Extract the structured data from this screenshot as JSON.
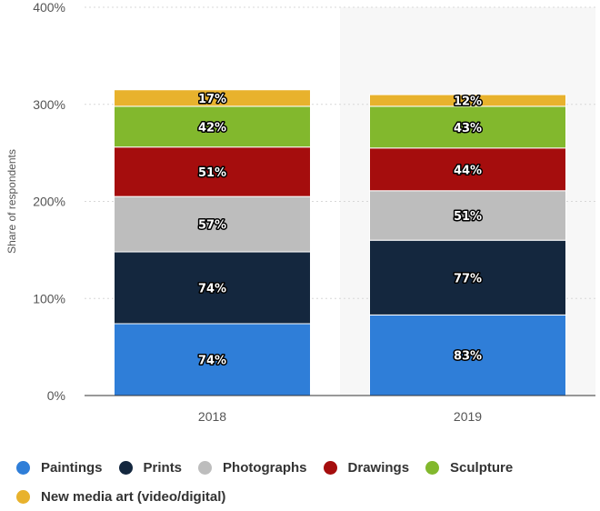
{
  "chart_data": {
    "type": "bar",
    "stacked": true,
    "categories": [
      "2018",
      "2019"
    ],
    "series": [
      {
        "name": "Paintings",
        "values": [
          74,
          83
        ],
        "color": "#2f7ed8",
        "labels": [
          "74%",
          "83%"
        ]
      },
      {
        "name": "Prints",
        "values": [
          74,
          77
        ],
        "color": "#14273e",
        "labels": [
          "74%",
          "77%"
        ]
      },
      {
        "name": "Photographs",
        "values": [
          57,
          51
        ],
        "color": "#bdbdbd",
        "labels": [
          "57%",
          "51%"
        ]
      },
      {
        "name": "Drawings",
        "values": [
          51,
          44
        ],
        "color": "#a50d0d",
        "labels": [
          "51%",
          "44%"
        ]
      },
      {
        "name": "Sculpture",
        "values": [
          42,
          43
        ],
        "color": "#82b82d",
        "labels": [
          "42%",
          "43%"
        ]
      },
      {
        "name": "New media art (video/digital)",
        "values": [
          17,
          12
        ],
        "color": "#e8b22d",
        "labels": [
          "17%",
          "12%"
        ]
      }
    ],
    "ylabel": "Share of respondents",
    "xlabel": "",
    "ylim": [
      0,
      400
    ],
    "yticks": [
      0,
      100,
      200,
      300,
      400
    ],
    "ytick_labels": [
      "0%",
      "100%",
      "200%",
      "300%",
      "400%"
    ],
    "grid": true,
    "legend": "bottom",
    "highlighted_category": "2019"
  }
}
